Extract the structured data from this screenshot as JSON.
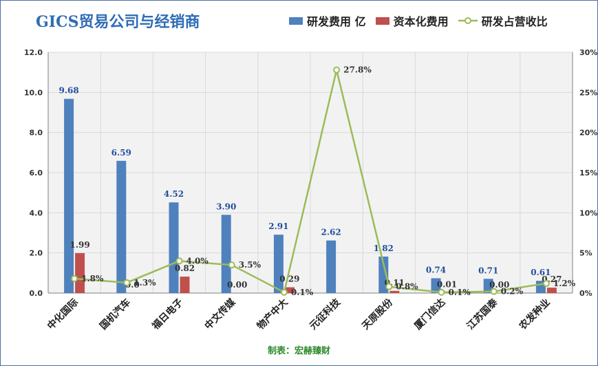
{
  "title": "GICS贸易公司与经销商",
  "credit": "制表：宏赫臻财",
  "colors": {
    "rd": "#4f81bd",
    "cap": "#c0504d",
    "ratio": "#9bbb59"
  },
  "legend": {
    "rd": "研发费用 亿",
    "cap": "资本化费用",
    "ratio": "研发占营收比"
  },
  "chart_data": {
    "type": "bar",
    "categories": [
      "中化国际",
      "国机汽车",
      "福日电子",
      "中文传媒",
      "物产中大",
      "元征科技",
      "天原股份",
      "厦门信达",
      "江苏国泰",
      "农发种业"
    ],
    "series": [
      {
        "name": "研发费用 亿",
        "kind": "bar",
        "axis": "left",
        "values": [
          9.68,
          6.59,
          4.52,
          3.9,
          2.91,
          2.62,
          1.82,
          0.74,
          0.71,
          0.61
        ],
        "labels": [
          "9.68",
          "6.59",
          "4.52",
          "3.90",
          "2.91",
          "2.62",
          "1.82",
          "0.74",
          "0.71",
          "0.61"
        ]
      },
      {
        "name": "资本化费用",
        "kind": "bar",
        "axis": "left",
        "values": [
          1.99,
          0.0,
          0.82,
          0.0,
          0.29,
          null,
          0.11,
          0.01,
          0.0,
          0.27
        ],
        "labels": [
          "1.99",
          "0.0",
          "0.82",
          "0.00",
          "0.29",
          "",
          "0.11",
          "0.01",
          "0.00",
          "0.27"
        ]
      },
      {
        "name": "研发占营收比",
        "kind": "line",
        "axis": "right",
        "values": [
          1.8,
          1.3,
          4.0,
          3.5,
          0.1,
          27.8,
          0.8,
          0.1,
          0.2,
          1.2
        ],
        "labels": [
          "1.8%",
          "1.3%",
          "4.0%",
          "3.5%",
          "0.1%",
          "27.8%",
          "0.8%",
          "0.1%",
          "0.2%",
          "1.2%"
        ]
      }
    ],
    "y_left": {
      "ylim": [
        0,
        12
      ],
      "ticks": [
        "0.0",
        "2.0",
        "4.0",
        "6.0",
        "8.0",
        "10.0",
        "12.0"
      ]
    },
    "y_right": {
      "ylim": [
        0,
        30
      ],
      "ticks": [
        "0%",
        "5%",
        "10%",
        "15%",
        "20%",
        "25%",
        "30%"
      ]
    },
    "grid": true,
    "legend_position": "top-right"
  }
}
